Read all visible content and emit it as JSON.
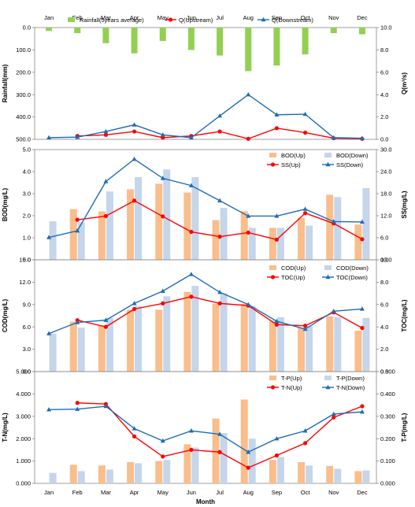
{
  "chart_data": [
    {
      "type": "bar+line",
      "months": [
        "Jan",
        "Feb",
        "Mar",
        "Apr",
        "May",
        "Jun",
        "Jul",
        "Aug",
        "Sep",
        "Oct",
        "Nov",
        "Dec"
      ],
      "left_axis": {
        "label": "Rainfall(mm)",
        "min": 0,
        "max": 500,
        "inverted": true,
        "ticks": [
          "0.0",
          "100.0",
          "200.0",
          "300.0",
          "400.0",
          "500.0"
        ]
      },
      "right_axis": {
        "label": "Q(m³/s)",
        "min": 0,
        "max": 10,
        "ticks": [
          "0.0",
          "2.0",
          "4.0",
          "6.0",
          "8.0",
          "10.0"
        ]
      },
      "bars": [
        {
          "name": "Rainfall(5years average)",
          "axis": "left",
          "color": "#92d050",
          "values": [
            15,
            25,
            70,
            115,
            60,
            100,
            125,
            195,
            170,
            120,
            25,
            30
          ]
        }
      ],
      "lines": [
        {
          "name": "Q(Upstream)",
          "axis": "right",
          "color": "#ff0000",
          "marker": "circle",
          "values": [
            null,
            0.3,
            0.4,
            0.7,
            0.15,
            0.3,
            0.7,
            0.05,
            1.0,
            0.6,
            0.1,
            0.05
          ]
        },
        {
          "name": "Q(Downstream)",
          "axis": "right",
          "color": "#1f6cb5",
          "marker": "triangle",
          "values": [
            0.15,
            0.2,
            0.7,
            1.3,
            0.4,
            0.15,
            2.1,
            4.0,
            2.2,
            2.25,
            0.15,
            0.1
          ]
        }
      ],
      "legend": "top"
    },
    {
      "type": "bar+line",
      "months": [
        "Jan",
        "Feb",
        "Mar",
        "Apr",
        "May",
        "Jun",
        "Jul",
        "Aug",
        "Sep",
        "Oct",
        "Nov",
        "Dec"
      ],
      "left_axis": {
        "label": "BOD(mg/L)",
        "min": 0,
        "max": 5,
        "ticks": [
          "0.0",
          "1.0",
          "2.0",
          "3.0",
          "4.0",
          "5.0"
        ]
      },
      "right_axis": {
        "label": "SS(mg/L)",
        "min": 0,
        "max": 30,
        "ticks": [
          "0.0",
          "6.0",
          "12.0",
          "18.0",
          "24.0",
          "30.0"
        ]
      },
      "bars": [
        {
          "name": "BOD(Up)",
          "axis": "left",
          "color": "#f9be8c",
          "values": [
            null,
            2.3,
            2.2,
            3.2,
            3.45,
            3.05,
            1.8,
            2.2,
            1.45,
            1.9,
            2.95,
            1.6
          ]
        },
        {
          "name": "BOD(Down)",
          "axis": "left",
          "color": "#c5d5ea",
          "values": [
            1.75,
            1.7,
            3.1,
            3.75,
            4.1,
            3.75,
            2.35,
            1.45,
            1.45,
            1.55,
            2.85,
            3.25
          ]
        }
      ],
      "lines": [
        {
          "name": "SS(Up)",
          "axis": "right",
          "color": "#ff0000",
          "marker": "circle",
          "values": [
            null,
            10.9,
            11.9,
            16.1,
            11.8,
            7.6,
            6.3,
            7.4,
            5.5,
            12.7,
            9.9,
            5.6
          ]
        },
        {
          "name": "SS(Down)",
          "axis": "right",
          "color": "#1f6cb5",
          "marker": "triangle",
          "values": [
            6.1,
            7.9,
            21.3,
            27.4,
            22.2,
            20.2,
            16.1,
            11.9,
            11.9,
            13.8,
            10.4,
            10.3
          ]
        }
      ],
      "legend": "top-right"
    },
    {
      "type": "bar+line",
      "months": [
        "Jan",
        "Feb",
        "Mar",
        "Apr",
        "May",
        "Jun",
        "Jul",
        "Aug",
        "Sep",
        "Oct",
        "Nov",
        "Dec"
      ],
      "left_axis": {
        "label": "COD(mg/L)",
        "min": 0,
        "max": 15,
        "ticks": [
          "0.0",
          "3.0",
          "6.0",
          "9.0",
          "12.0",
          "15.0"
        ]
      },
      "right_axis": {
        "label": "TOC(mg/L)",
        "min": 0,
        "max": 10,
        "ticks": [
          "0.0",
          "2.0",
          "4.0",
          "6.0",
          "8.0",
          "10.0"
        ]
      },
      "bars": [
        {
          "name": "COD(Up)",
          "axis": "left",
          "color": "#f9be8c",
          "values": [
            null,
            6.7,
            6.2,
            8.3,
            8.3,
            10.7,
            9.1,
            9.1,
            6.8,
            5.9,
            7.4,
            5.5
          ]
        },
        {
          "name": "COD(Down)",
          "axis": "left",
          "color": "#c5d5ea",
          "values": [
            5.1,
            5.9,
            7.2,
            8.8,
            10.1,
            11.5,
            10.5,
            8.8,
            7.3,
            6.1,
            7.3,
            7.2
          ]
        }
      ],
      "lines": [
        {
          "name": "TOC(Up)",
          "axis": "right",
          "color": "#ff0000",
          "marker": "circle",
          "values": [
            null,
            4.6,
            4.0,
            5.6,
            6.1,
            6.7,
            6.1,
            5.9,
            4.2,
            4.1,
            5.3,
            3.9
          ]
        },
        {
          "name": "TOC(Down)",
          "axis": "right",
          "color": "#1f6cb5",
          "marker": "triangle",
          "values": [
            3.4,
            4.4,
            4.6,
            6.1,
            7.2,
            8.7,
            7.1,
            6.0,
            4.5,
            3.8,
            5.4,
            5.6
          ]
        }
      ],
      "legend": "top-right"
    },
    {
      "type": "bar+line",
      "xlabel": "Month",
      "months": [
        "Jan",
        "Feb",
        "Mar",
        "Apr",
        "May",
        "Jun",
        "Jul",
        "Aug",
        "Sep",
        "Oct",
        "Nov",
        "Dec"
      ],
      "left_axis": {
        "label": "T-N(mg/L)",
        "min": 0,
        "max": 5,
        "ticks": [
          "0.000",
          "1.000",
          "2.000",
          "3.000",
          "4.000",
          "5.000"
        ]
      },
      "right_axis": {
        "label": "T-P(mg/L)",
        "min": 0,
        "max": 0.5,
        "ticks": [
          "0.000",
          "0.100",
          "0.200",
          "0.300",
          "0.400",
          "0.500"
        ]
      },
      "bars": [
        {
          "name": "T-P(Up)",
          "axis": "right",
          "color": "#f9be8c",
          "values": [
            null,
            0.083,
            0.08,
            0.095,
            0.1,
            0.175,
            0.29,
            0.375,
            0.105,
            0.095,
            0.078,
            0.055
          ]
        },
        {
          "name": "T-P(Down)",
          "axis": "right",
          "color": "#c5d5ea",
          "values": [
            0.047,
            0.055,
            0.062,
            0.09,
            0.105,
            0.16,
            0.225,
            0.2,
            0.118,
            0.08,
            0.065,
            0.058
          ]
        }
      ],
      "lines": [
        {
          "name": "T-N(Up)",
          "axis": "left",
          "color": "#ff0000",
          "marker": "circle",
          "values": [
            null,
            3.6,
            3.55,
            2.1,
            1.2,
            1.5,
            1.4,
            0.7,
            1.25,
            1.8,
            2.95,
            3.45
          ]
        },
        {
          "name": "T-N(Down)",
          "axis": "left",
          "color": "#1f6cb5",
          "marker": "triangle",
          "values": [
            3.3,
            3.32,
            3.45,
            2.45,
            1.9,
            2.35,
            2.2,
            1.4,
            2.0,
            2.35,
            3.1,
            3.2
          ]
        }
      ],
      "legend": "top-right"
    }
  ]
}
